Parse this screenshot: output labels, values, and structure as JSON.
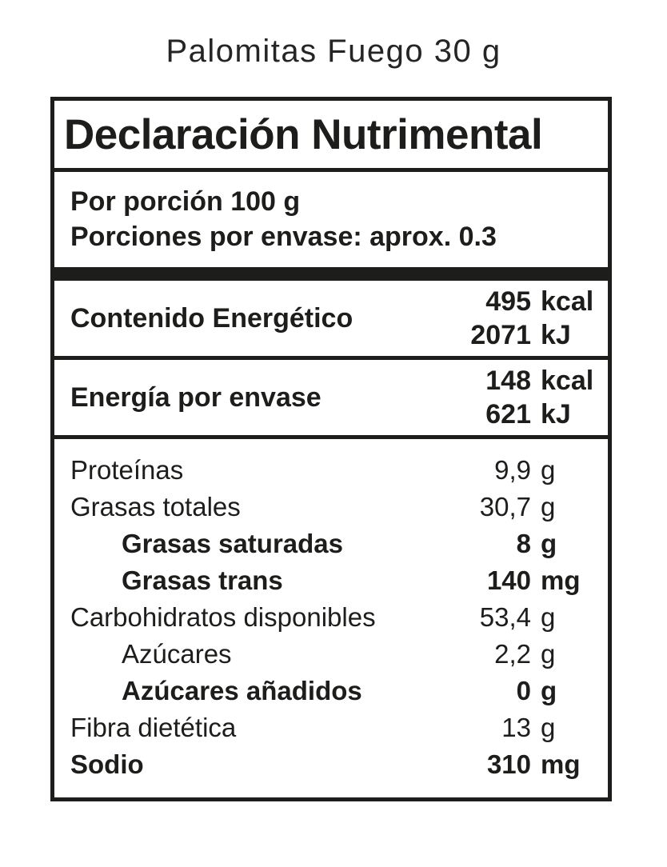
{
  "page_title": "Palomitas Fuego 30 g",
  "label": {
    "header": "Declaración Nutrimental",
    "serving": {
      "line1": "Por porción 100 g",
      "line2": "Porciones por envase: aprox. 0.3"
    },
    "energy_rows": [
      {
        "label": "Contenido Energético",
        "values": [
          {
            "num": "495",
            "unit": "kcal"
          },
          {
            "num": "2071",
            "unit": "kJ"
          }
        ]
      },
      {
        "label": "Energía por envase",
        "values": [
          {
            "num": "148",
            "unit": "kcal"
          },
          {
            "num": "621",
            "unit": "kJ"
          }
        ]
      }
    ],
    "nutrients": [
      {
        "label": "Proteínas",
        "num": "9,9",
        "unit": "g",
        "bold": false,
        "indent": false
      },
      {
        "label": "Grasas totales",
        "num": "30,7",
        "unit": "g",
        "bold": false,
        "indent": false
      },
      {
        "label": "Grasas saturadas",
        "num": "8",
        "unit": "g",
        "bold": true,
        "indent": true
      },
      {
        "label": "Grasas trans",
        "num": "140",
        "unit": "mg",
        "bold": true,
        "indent": true
      },
      {
        "label": "Carbohidratos disponibles",
        "num": "53,4",
        "unit": "g",
        "bold": false,
        "indent": false
      },
      {
        "label": "Azúcares",
        "num": "2,2",
        "unit": "g",
        "bold": false,
        "indent": true
      },
      {
        "label": "Azúcares añadidos",
        "num": "0",
        "unit": "g",
        "bold": true,
        "indent": true
      },
      {
        "label": "Fibra dietética",
        "num": "13",
        "unit": "g",
        "bold": false,
        "indent": false
      },
      {
        "label": "Sodio",
        "num": "310",
        "unit": "mg",
        "bold": true,
        "indent": false
      }
    ]
  },
  "colors": {
    "ink": "#1d1d1b",
    "background": "#ffffff"
  }
}
